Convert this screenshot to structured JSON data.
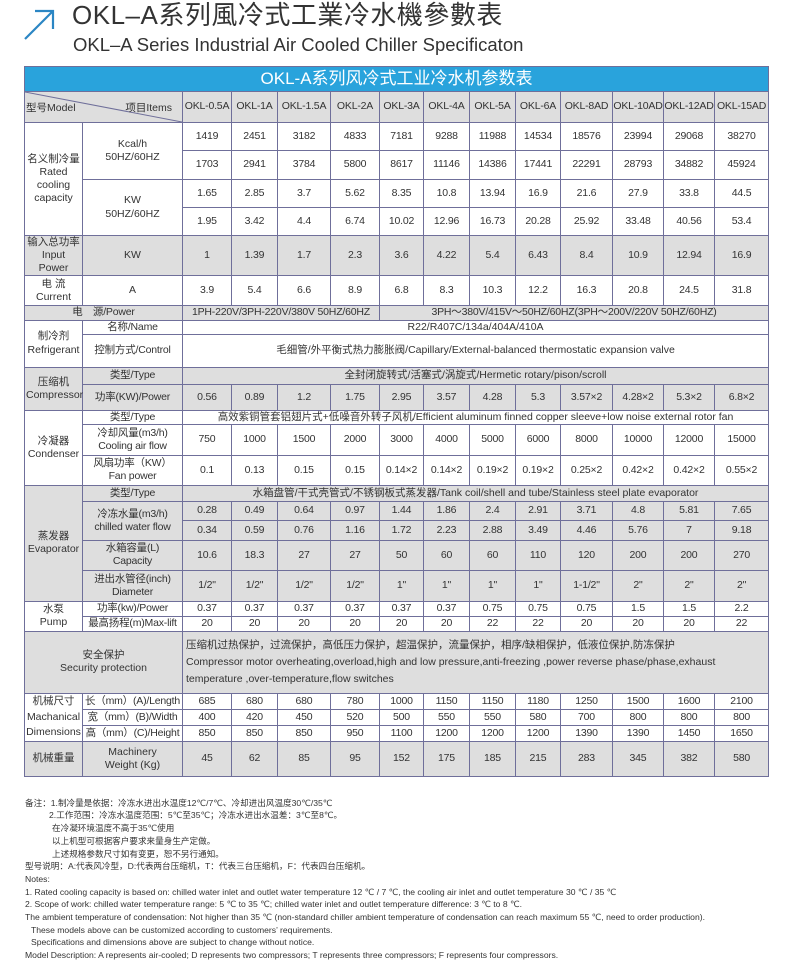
{
  "header": {
    "title_cn": "OKL–A系列風冷式工業冷水機參數表",
    "title_en": "OKL–A Series Industrial Air Cooled Chiller Specificaton",
    "accent_color": "#2b86c4",
    "icon": "arrow-up-right-icon"
  },
  "table": {
    "banner": "OKL-A系列风冷式工业冷水机参数表",
    "banner_color": "#29a3dc",
    "model_label": "型号Model",
    "items_label": "项目Items",
    "models": [
      "OKL-0.5A",
      "OKL-1A",
      "OKL-1.5A",
      "OKL-2A",
      "OKL-3A",
      "OKL-4A",
      "OKL-5A",
      "OKL-6A",
      "OKL-8AD",
      "OKL-10AD",
      "OKL-12AD",
      "OKL-15AD"
    ],
    "cooling": {
      "label_cn": "名义制冷量",
      "label_en": "Rated cooling capacity",
      "kcal_label": "Kcal/h",
      "kw_label": "KW",
      "hz_label": "50HZ/60HZ",
      "kcal_50": [
        "1419",
        "2451",
        "3182",
        "4833",
        "7181",
        "9288",
        "11988",
        "14534",
        "18576",
        "23994",
        "29068",
        "38270"
      ],
      "kcal_60": [
        "1703",
        "2941",
        "3784",
        "5800",
        "8617",
        "11146",
        "14386",
        "17441",
        "22291",
        "28793",
        "34882",
        "45924"
      ],
      "kw_50": [
        "1.65",
        "2.85",
        "3.7",
        "5.62",
        "8.35",
        "10.8",
        "13.94",
        "16.9",
        "21.6",
        "27.9",
        "33.8",
        "44.5"
      ],
      "kw_60": [
        "1.95",
        "3.42",
        "4.4",
        "6.74",
        "10.02",
        "12.96",
        "16.73",
        "20.28",
        "25.92",
        "33.48",
        "40.56",
        "53.4"
      ]
    },
    "input_power": {
      "label_cn": "输入总功率",
      "label_en": "Input Power",
      "unit": "KW",
      "values": [
        "1",
        "1.39",
        "1.7",
        "2.3",
        "3.6",
        "4.22",
        "5.4",
        "6.43",
        "8.4",
        "10.9",
        "12.94",
        "16.9"
      ]
    },
    "current": {
      "label_cn": "电 流",
      "label_en": "Current",
      "unit": "A",
      "values": [
        "3.9",
        "5.4",
        "6.6",
        "8.9",
        "6.8",
        "8.3",
        "10.3",
        "12.2",
        "16.3",
        "20.8",
        "24.5",
        "31.8"
      ]
    },
    "power": {
      "label": "电　源/Power",
      "single_phase": "1PH-220V/3PH-220V/380V 50HZ/60HZ",
      "three_phase": "3PH～380V/415V～50HZ/60HZ(3PH～200V/220V   50HZ/60HZ)"
    },
    "refrigerant": {
      "label_cn": "制冷剂",
      "label_en": "Refrigerant",
      "name_label": "名称/Name",
      "name_value": "R22/R407C/134a/404A/410A",
      "control_label": "控制方式/Control",
      "control_value": "毛细管/外平衡式热力膨胀阀/Capillary/External-balanced thermostatic expansion valve"
    },
    "compressor": {
      "label_cn": "压缩机",
      "label_en": "Compressor",
      "type_label": "类型/Type",
      "type_value": "全封闭旋转式/活塞式/涡旋式/Hermetic rotary/pison/scroll",
      "power_label": "功率(KW)/Power",
      "power_values": [
        "0.56",
        "0.89",
        "1.2",
        "1.75",
        "2.95",
        "3.57",
        "4.28",
        "5.3",
        "3.57×2",
        "4.28×2",
        "5.3×2",
        "6.8×2"
      ]
    },
    "condenser": {
      "label_cn": "冷凝器",
      "label_en": "Condenser",
      "type_label": "类型/Type",
      "type_value": "高效紫铜管套铝翅片式+低噪音外转子风机/Efficient aluminum finned copper sleeve+low noise external rotor fan",
      "airflow_label_cn": "冷却风量(m3/h)",
      "airflow_label_en": "Cooling air flow",
      "airflow_values": [
        "750",
        "1000",
        "1500",
        "2000",
        "3000",
        "4000",
        "5000",
        "6000",
        "8000",
        "10000",
        "12000",
        "15000"
      ],
      "fan_label_cn": "风扇功率（KW）",
      "fan_label_en": "Fan power",
      "fan_values": [
        "0.1",
        "0.13",
        "0.15",
        "0.15",
        "0.14×2",
        "0.14×2",
        "0.19×2",
        "0.19×2",
        "0.25×2",
        "0.42×2",
        "0.42×2",
        "0.55×2"
      ]
    },
    "evaporator": {
      "label_cn": "蒸发器",
      "label_en": "Evaporator",
      "type_label": "类型/Type",
      "type_value": "水箱盘管/干式壳管式/不锈钢板式蒸发器/Tank coil/shell and tube/Stainless steel plate evaporator",
      "chilled_label_cn": "冷冻水量(m3/h)",
      "chilled_label_en": "chilled water flow",
      "chilled_50": [
        "0.28",
        "0.49",
        "0.64",
        "0.97",
        "1.44",
        "1.86",
        "2.4",
        "2.91",
        "3.71",
        "4.8",
        "5.81",
        "7.65"
      ],
      "chilled_60": [
        "0.34",
        "0.59",
        "0.76",
        "1.16",
        "1.72",
        "2.23",
        "2.88",
        "3.49",
        "4.46",
        "5.76",
        "7",
        "9.18"
      ],
      "capacity_label_cn": "水箱容量(L)",
      "capacity_label_en": "Capacity",
      "capacity_values": [
        "10.6",
        "18.3",
        "27",
        "27",
        "50",
        "60",
        "60",
        "110",
        "120",
        "200",
        "200",
        "270"
      ],
      "diameter_label_cn": "进出水管径(inch)",
      "diameter_label_en": "Diameter",
      "diameter_values": [
        "1/2\"",
        "1/2\"",
        "1/2\"",
        "1/2\"",
        "1\"",
        "1\"",
        "1\"",
        "1\"",
        "1-1/2\"",
        "2\"",
        "2\"",
        "2\""
      ]
    },
    "pump": {
      "label_cn": "水泵",
      "label_en": "Pump",
      "power_label": "功率(kw)/Power",
      "power_values": [
        "0.37",
        "0.37",
        "0.37",
        "0.37",
        "0.37",
        "0.37",
        "0.75",
        "0.75",
        "0.75",
        "1.5",
        "1.5",
        "2.2"
      ],
      "lift_label": "最高扬程(m)Max-lift",
      "lift_values": [
        "20",
        "20",
        "20",
        "20",
        "20",
        "20",
        "22",
        "22",
        "20",
        "20",
        "20",
        "22"
      ]
    },
    "security": {
      "label_cn": "安全保护",
      "label_en": "Security protection",
      "text_cn": "压缩机过热保护，过流保护，高低压力保护，超温保护，流量保护，相序/缺相保护，低液位保护,防冻保护",
      "text_en": "Compressor motor overheating,overload,high and low pressure,anti-freezing ,power reverse phase/phase,exhaust temperature ,over-temperature,flow switches"
    },
    "dimensions": {
      "label_cn": "机械尺寸",
      "label_en_1": "Machanical",
      "label_en_2": "Dimensions",
      "length_label": "长（mm）(A)/Length",
      "length_values": [
        "685",
        "680",
        "680",
        "780",
        "1000",
        "1150",
        "1150",
        "1180",
        "1250",
        "1500",
        "1600",
        "2100"
      ],
      "width_label": "宽（mm）(B)/Width",
      "width_values": [
        "400",
        "420",
        "450",
        "520",
        "500",
        "550",
        "550",
        "580",
        "700",
        "800",
        "800",
        "800"
      ],
      "height_label": "高（mm）(C)/Height",
      "height_values": [
        "850",
        "850",
        "850",
        "950",
        "1100",
        "1200",
        "1200",
        "1200",
        "1390",
        "1390",
        "1450",
        "1650"
      ]
    },
    "weight": {
      "label_cn": "机械重量",
      "label_en": "Machinery Weight (Kg)",
      "values": [
        "45",
        "62",
        "85",
        "95",
        "152",
        "175",
        "185",
        "215",
        "283",
        "345",
        "382",
        "580"
      ]
    }
  },
  "notes": {
    "cn": [
      "备注：1.制冷量是依据：冷冻水进出水温度12℃/7℃、冷却进出风温度30℃/35℃",
      "2.工作范围：冷冻水温度范围：5℃至35℃；冷冻水进出水温差：3℃至8℃。",
      "在冷凝环境温度不高于35℃使用",
      "以上机型可根据客户要求来量身生产定做。",
      "上述规格参数尺寸如有变更，恕不另行通知。",
      "型号说明：A:代表风冷型，D:代表两台压缩机，T：代表三台压缩机，F：代表四台压缩机。"
    ],
    "en": [
      "Notes:",
      "1. Rated cooling capacity is based on: chilled water inlet and outlet water temperature 12 ℃ / 7 ℃, the cooling air inlet and outlet temperature 30 ℃ / 35 ℃",
      "2. Scope of work: chilled water temperature range: 5 ℃ to 35 ℃; chilled water inlet and outlet temperature difference: 3 ℃ to 8 ℃.",
      "The ambient temperature of condensation: Not higher than 35 ℃ (non-standard chiller ambient temperature of condensation can reach maximum 55 ℃, need to order production).",
      "These models above can be customized according to customers’  requirements.",
      "Specifications and dimensions above are subject to change without notice.",
      "Model Description: A represents air-cooled; D represents two compressors; T represents three compressors; F represents four compressors."
    ]
  }
}
